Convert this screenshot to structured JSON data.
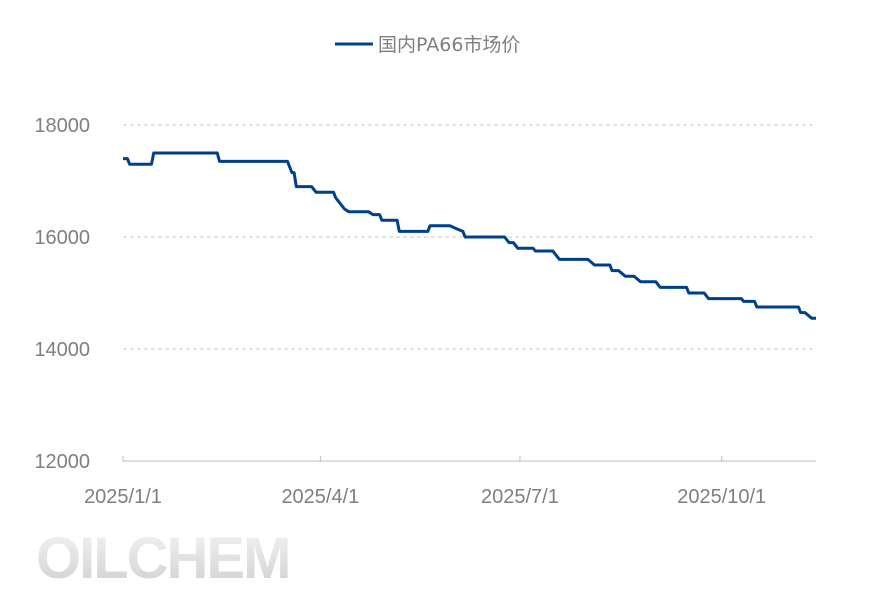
{
  "chart_data": {
    "type": "line",
    "title": "",
    "legend_position": "top",
    "grid": "horizontal dashed",
    "ylim": [
      12000,
      18000
    ],
    "y_ticks": [
      "12000",
      "14000",
      "16000",
      "18000"
    ],
    "x_ticks": [
      "2025/1/1",
      "2025/4/1",
      "2025/7/1",
      "2025/10/1"
    ],
    "xlim": [
      "2025-01-01",
      "2025-11-13"
    ],
    "series": [
      {
        "name": "国内PA66市场价",
        "color": "#003F8A",
        "points": [
          [
            "2025-01-01",
            17400
          ],
          [
            "2025-01-03",
            17400
          ],
          [
            "2025-01-04",
            17300
          ],
          [
            "2025-01-14",
            17300
          ],
          [
            "2025-01-15",
            17500
          ],
          [
            "2025-02-13",
            17500
          ],
          [
            "2025-02-14",
            17350
          ],
          [
            "2025-03-17",
            17350
          ],
          [
            "2025-03-18",
            17250
          ],
          [
            "2025-03-19",
            17150
          ],
          [
            "2025-03-20",
            17150
          ],
          [
            "2025-03-21",
            16900
          ],
          [
            "2025-03-28",
            16900
          ],
          [
            "2025-03-30",
            16800
          ],
          [
            "2025-04-07",
            16800
          ],
          [
            "2025-04-08",
            16700
          ],
          [
            "2025-04-09",
            16650
          ],
          [
            "2025-04-12",
            16500
          ],
          [
            "2025-04-14",
            16450
          ],
          [
            "2025-04-23",
            16450
          ],
          [
            "2025-04-25",
            16400
          ],
          [
            "2025-04-28",
            16400
          ],
          [
            "2025-04-29",
            16300
          ],
          [
            "2025-05-06",
            16300
          ],
          [
            "2025-05-07",
            16100
          ],
          [
            "2025-05-20",
            16100
          ],
          [
            "2025-05-21",
            16200
          ],
          [
            "2025-05-30",
            16200
          ],
          [
            "2025-06-02",
            16150
          ],
          [
            "2025-06-05",
            16100
          ],
          [
            "2025-06-06",
            16000
          ],
          [
            "2025-06-24",
            16000
          ],
          [
            "2025-06-26",
            15900
          ],
          [
            "2025-06-28",
            15900
          ],
          [
            "2025-06-30",
            15800
          ],
          [
            "2025-07-07",
            15800
          ],
          [
            "2025-07-08",
            15750
          ],
          [
            "2025-07-16",
            15750
          ],
          [
            "2025-07-18",
            15650
          ],
          [
            "2025-07-19",
            15600
          ],
          [
            "2025-08-01",
            15600
          ],
          [
            "2025-08-04",
            15500
          ],
          [
            "2025-08-11",
            15500
          ],
          [
            "2025-08-12",
            15400
          ],
          [
            "2025-08-15",
            15400
          ],
          [
            "2025-08-18",
            15300
          ],
          [
            "2025-08-22",
            15300
          ],
          [
            "2025-08-25",
            15200
          ],
          [
            "2025-09-01",
            15200
          ],
          [
            "2025-09-03",
            15100
          ],
          [
            "2025-09-15",
            15100
          ],
          [
            "2025-09-16",
            15000
          ],
          [
            "2025-09-23",
            15000
          ],
          [
            "2025-09-25",
            14900
          ],
          [
            "2025-10-10",
            14900
          ],
          [
            "2025-10-11",
            14850
          ],
          [
            "2025-10-16",
            14850
          ],
          [
            "2025-10-17",
            14750
          ],
          [
            "2025-11-05",
            14750
          ],
          [
            "2025-11-06",
            14650
          ],
          [
            "2025-11-08",
            14650
          ],
          [
            "2025-11-11",
            14550
          ],
          [
            "2025-11-13",
            14550
          ]
        ]
      }
    ]
  },
  "watermark": "OILCHEM"
}
